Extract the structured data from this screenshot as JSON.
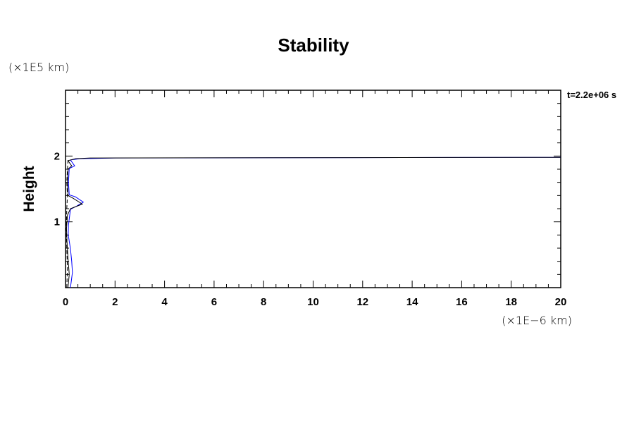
{
  "chart_data": {
    "type": "line",
    "title": "Stability",
    "ylabel": "Height",
    "xlabel": "",
    "x_unit": "(×1E−6 km)",
    "y_unit": "(×1E5 km)",
    "annotation": "t=2.2e+06 s",
    "xlim": [
      0,
      20
    ],
    "ylim": [
      0,
      3
    ],
    "x_ticks": [
      0,
      2,
      4,
      6,
      8,
      10,
      12,
      14,
      16,
      18,
      20
    ],
    "x_tick_labels": [
      "0",
      "2",
      "4",
      "6",
      "8",
      "10",
      "12",
      "14",
      "16",
      "18",
      "20"
    ],
    "y_ticks": [
      1,
      2
    ],
    "y_tick_labels": [
      "1",
      "2"
    ],
    "grid": false,
    "series": [
      {
        "color": "#0000ff",
        "style": "solid",
        "x": [
          0.2,
          0.28,
          0.25,
          0.2,
          0.11,
          0.12,
          0.2,
          0.45,
          0.72,
          0.4,
          0.15,
          0.12,
          0.15,
          0.37,
          0.2,
          0.57,
          2,
          20
        ],
        "y": [
          0.0,
          0.23,
          0.4,
          0.59,
          0.8,
          0.95,
          1.19,
          1.24,
          1.3,
          1.38,
          1.41,
          1.6,
          1.81,
          1.85,
          1.94,
          1.96,
          1.97,
          1.98
        ]
      },
      {
        "color": "#000000",
        "style": "solid",
        "x": [
          0.1,
          0.15,
          0.1,
          0.06,
          0.04,
          0.08,
          0.2,
          0.68,
          0.3,
          0.1,
          0.08,
          0.1,
          0.25,
          0.1,
          0.4,
          1,
          20
        ],
        "y": [
          0.0,
          0.2,
          0.45,
          0.7,
          0.9,
          1.1,
          1.2,
          1.27,
          1.36,
          1.4,
          1.6,
          1.8,
          1.85,
          1.93,
          1.96,
          1.97,
          1.98
        ]
      },
      {
        "color": "#000000",
        "style": "dashed",
        "x": [
          0.05,
          0.08,
          0.05,
          0.03,
          0.05,
          0.08,
          0.05,
          0.08,
          0.1
        ],
        "y": [
          0.0,
          0.3,
          0.6,
          0.9,
          1.2,
          1.4,
          1.6,
          1.8,
          1.95
        ]
      }
    ]
  }
}
